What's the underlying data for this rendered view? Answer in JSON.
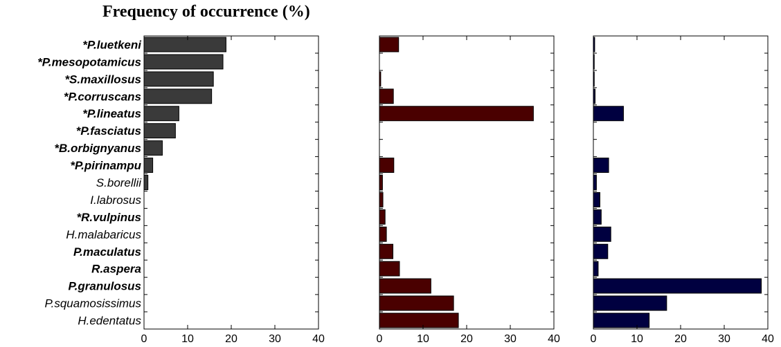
{
  "title": "Frequency of occurrence (%)",
  "chart_data": {
    "type": "bar",
    "orientation": "horizontal",
    "categories": [
      "*P.luetkeni",
      "*P.mesopotamicus",
      "*S.maxillosus",
      "*P.corruscans",
      "*P.lineatus",
      "*P.fasciatus",
      "*B.orbignyanus",
      "*P.pirinampu",
      "S.borellii",
      "I.labrosus",
      "*R.vulpinus",
      "H.malabaricus",
      "P.maculatus",
      "R.aspera",
      "P.granulosus",
      "P.squamosissimus",
      "H.edentatus"
    ],
    "bold_categories": [
      "*P.luetkeni",
      "*P.mesopotamicus",
      "*S.maxillosus",
      "*P.corruscans",
      "*P.lineatus",
      "*P.fasciatus",
      "*B.orbignyanus",
      "*P.pirinampu",
      "*R.vulpinus",
      "P.maculatus",
      "R.aspera",
      "P.granulosus"
    ],
    "xlim": [
      0,
      40
    ],
    "xticks": [
      0,
      10,
      20,
      30,
      40
    ],
    "panels": [
      {
        "color": "#3a3a3a",
        "values": [
          18.8,
          18.1,
          15.9,
          15.5,
          8.0,
          7.2,
          4.2,
          2.0,
          0.9,
          0,
          0,
          0,
          0,
          0,
          0,
          0,
          0
        ]
      },
      {
        "color": "#4a0000",
        "values": [
          4.4,
          0,
          0.3,
          3.2,
          35.3,
          0,
          0,
          3.3,
          0.7,
          0.8,
          1.3,
          1.6,
          3.1,
          4.6,
          11.8,
          17.0,
          18.1
        ]
      },
      {
        "color": "#000040",
        "values": [
          0.3,
          0.2,
          0.2,
          0.4,
          6.9,
          0,
          0,
          3.5,
          0.7,
          1.5,
          1.8,
          4.0,
          3.3,
          1.1,
          38.5,
          16.8,
          12.8
        ]
      }
    ]
  }
}
